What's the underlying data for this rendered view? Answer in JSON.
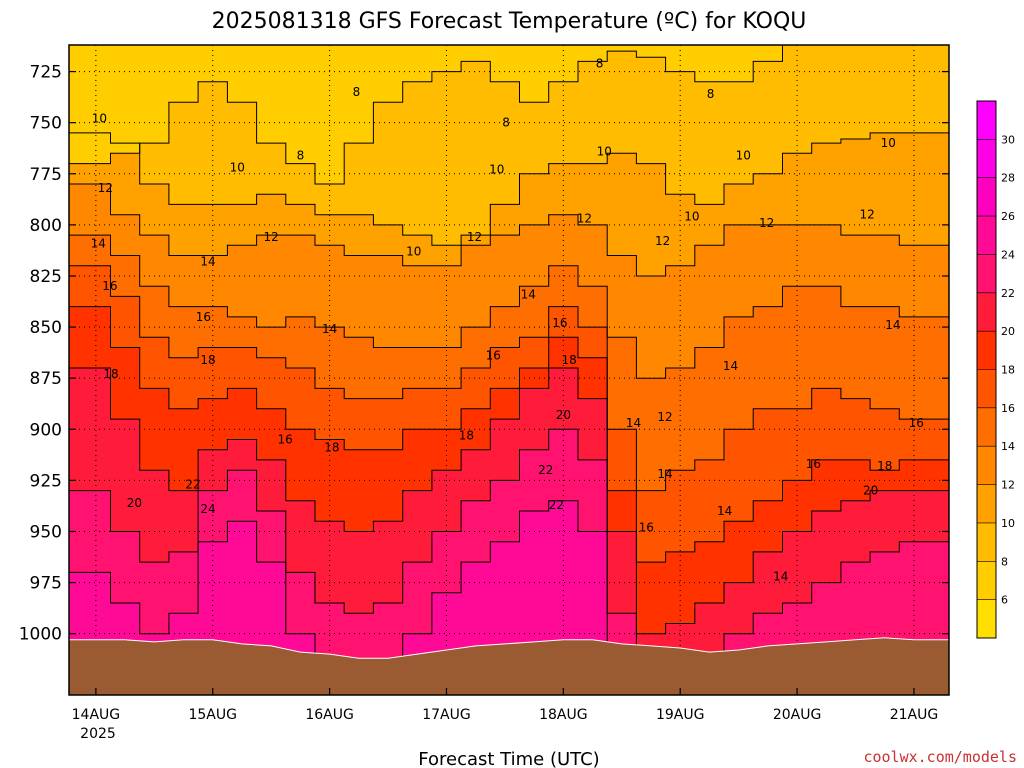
{
  "chart_data": {
    "type": "heatmap",
    "title": "2025081318 GFS Forecast Temperature (ºC) for KOQU",
    "xlabel": "Forecast Time (UTC)",
    "ylabel": "",
    "x_ticks": [
      "14AUG",
      "15AUG",
      "16AUG",
      "17AUG",
      "18AUG",
      "19AUG",
      "20AUG",
      "21AUG"
    ],
    "x_tick_year": "2025",
    "y_ticks": [
      725,
      750,
      775,
      800,
      825,
      850,
      875,
      900,
      925,
      950,
      975,
      1000
    ],
    "y_unit": "hPa",
    "y_range": [
      712,
      1030
    ],
    "y_reversed": true,
    "x_range_days": [
      -0.23,
      7.3
    ],
    "grid": true,
    "colorbar": {
      "levels": [
        4,
        6,
        8,
        10,
        12,
        14,
        16,
        18,
        20,
        22,
        24,
        26,
        28,
        30,
        32
      ],
      "labels": [
        "6",
        "8",
        "10",
        "12",
        "14",
        "16",
        "18",
        "20",
        "22",
        "24",
        "26",
        "28",
        "30"
      ],
      "colors": [
        "#ffde00",
        "#ffcd00",
        "#ffbc00",
        "#ffa200",
        "#ff8800",
        "#ff6e00",
        "#ff5400",
        "#ff3200",
        "#ff1c3a",
        "#ff1270",
        "#ff0a96",
        "#ff00be",
        "#ff00e6",
        "#ff00ff"
      ],
      "position": "right"
    },
    "times": [
      "14AUG 00Z",
      "14AUG 06Z",
      "14AUG 12Z",
      "14AUG 18Z",
      "15AUG 00Z",
      "15AUG 06Z",
      "15AUG 12Z",
      "15AUG 18Z",
      "16AUG 00Z",
      "16AUG 06Z",
      "16AUG 12Z",
      "16AUG 18Z",
      "17AUG 00Z",
      "17AUG 06Z",
      "17AUG 12Z",
      "17AUG 18Z",
      "18AUG 00Z",
      "18AUG 06Z",
      "18AUG 12Z",
      "18AUG 18Z",
      "19AUG 00Z",
      "19AUG 06Z",
      "19AUG 12Z",
      "19AUG 18Z",
      "20AUG 00Z",
      "20AUG 06Z",
      "20AUG 12Z",
      "20AUG 18Z",
      "21AUG 00Z"
    ],
    "isotherm_levels": [
      8,
      10,
      12,
      14,
      16,
      18,
      20,
      22,
      24
    ],
    "isotherm_pressure_hPa": {
      "8": [
        770,
        765,
        760,
        740,
        730,
        740,
        760,
        770,
        780,
        760,
        740,
        730,
        725,
        720,
        730,
        740,
        730,
        720,
        715,
        718,
        725,
        730,
        730,
        720,
        712,
        712,
        712,
        712,
        712
      ],
      "10": [
        755,
        760,
        780,
        790,
        790,
        790,
        785,
        790,
        795,
        795,
        800,
        805,
        810,
        805,
        790,
        775,
        770,
        770,
        765,
        770,
        785,
        790,
        780,
        775,
        765,
        760,
        758,
        755,
        755
      ],
      "12": [
        780,
        795,
        805,
        815,
        815,
        810,
        805,
        805,
        810,
        815,
        815,
        820,
        820,
        810,
        805,
        800,
        795,
        800,
        815,
        825,
        820,
        810,
        800,
        800,
        800,
        800,
        805,
        805,
        810
      ],
      "14": [
        805,
        815,
        830,
        840,
        840,
        845,
        850,
        845,
        850,
        855,
        860,
        860,
        860,
        850,
        840,
        830,
        820,
        830,
        855,
        875,
        870,
        860,
        845,
        840,
        830,
        830,
        840,
        840,
        845
      ],
      "16": [
        820,
        835,
        855,
        865,
        860,
        860,
        865,
        870,
        880,
        885,
        885,
        880,
        880,
        870,
        860,
        855,
        840,
        850,
        900,
        930,
        920,
        915,
        900,
        890,
        890,
        880,
        885,
        890,
        895
      ],
      "18": [
        840,
        860,
        880,
        890,
        885,
        880,
        890,
        900,
        905,
        910,
        910,
        900,
        900,
        890,
        880,
        870,
        855,
        865,
        930,
        965,
        960,
        955,
        945,
        935,
        925,
        915,
        915,
        920,
        915
      ],
      "20": [
        870,
        895,
        920,
        930,
        910,
        905,
        915,
        935,
        945,
        950,
        945,
        930,
        920,
        910,
        895,
        880,
        870,
        885,
        950,
        1000,
        995,
        985,
        975,
        960,
        950,
        940,
        935,
        930,
        930
      ],
      "22": [
        930,
        950,
        965,
        960,
        930,
        920,
        940,
        970,
        985,
        990,
        985,
        965,
        950,
        935,
        925,
        910,
        900,
        915,
        990,
        1030,
        1030,
        1010,
        1000,
        990,
        985,
        975,
        965,
        960,
        955
      ],
      "24": [
        970,
        985,
        1000,
        990,
        955,
        945,
        965,
        1000,
        1015,
        1020,
        1015,
        1000,
        980,
        965,
        955,
        940,
        935,
        950,
        1030,
        1030,
        1030,
        1030,
        1030,
        1030,
        1030,
        1030,
        1030,
        1030,
        1030
      ]
    },
    "contour_labels": [
      {
        "text": "8",
        "t": 2.23,
        "p": 735
      },
      {
        "text": "8",
        "t": 4.31,
        "p": 721
      },
      {
        "text": "8",
        "t": 5.26,
        "p": 736
      },
      {
        "text": "8",
        "t": 3.51,
        "p": 750
      },
      {
        "text": "8",
        "t": 1.75,
        "p": 766
      },
      {
        "text": "10",
        "t": 0.03,
        "p": 748
      },
      {
        "text": "10",
        "t": 1.21,
        "p": 772
      },
      {
        "text": "10",
        "t": 3.43,
        "p": 773
      },
      {
        "text": "10",
        "t": 4.35,
        "p": 764
      },
      {
        "text": "10",
        "t": 5.54,
        "p": 766
      },
      {
        "text": "10",
        "t": 5.1,
        "p": 796
      },
      {
        "text": "10",
        "t": 6.78,
        "p": 760
      },
      {
        "text": "10",
        "t": 2.72,
        "p": 813
      },
      {
        "text": "12",
        "t": 0.08,
        "p": 782
      },
      {
        "text": "12",
        "t": 1.5,
        "p": 806
      },
      {
        "text": "12",
        "t": 3.24,
        "p": 806
      },
      {
        "text": "12",
        "t": 4.18,
        "p": 797
      },
      {
        "text": "12",
        "t": 4.85,
        "p": 808
      },
      {
        "text": "12",
        "t": 5.74,
        "p": 799
      },
      {
        "text": "12",
        "t": 6.6,
        "p": 795
      },
      {
        "text": "12",
        "t": 4.87,
        "p": 894
      },
      {
        "text": "14",
        "t": 0.02,
        "p": 809
      },
      {
        "text": "14",
        "t": 0.96,
        "p": 818
      },
      {
        "text": "14",
        "t": 2.0,
        "p": 851
      },
      {
        "text": "14",
        "t": 3.7,
        "p": 834
      },
      {
        "text": "14",
        "t": 6.82,
        "p": 849
      },
      {
        "text": "14",
        "t": 5.43,
        "p": 869
      },
      {
        "text": "14",
        "t": 4.6,
        "p": 897
      },
      {
        "text": "14",
        "t": 4.87,
        "p": 922
      },
      {
        "text": "14",
        "t": 5.38,
        "p": 940
      },
      {
        "text": "14",
        "t": 5.86,
        "p": 972
      },
      {
        "text": "16",
        "t": 0.12,
        "p": 830
      },
      {
        "text": "16",
        "t": 0.92,
        "p": 845
      },
      {
        "text": "16",
        "t": 1.62,
        "p": 905
      },
      {
        "text": "16",
        "t": 3.4,
        "p": 864
      },
      {
        "text": "16",
        "t": 3.97,
        "p": 848
      },
      {
        "text": "16",
        "t": 7.02,
        "p": 897
      },
      {
        "text": "16",
        "t": 6.14,
        "p": 917
      },
      {
        "text": "16",
        "t": 4.71,
        "p": 948
      },
      {
        "text": "18",
        "t": 0.13,
        "p": 873
      },
      {
        "text": "18",
        "t": 0.96,
        "p": 866
      },
      {
        "text": "18",
        "t": 2.02,
        "p": 909
      },
      {
        "text": "18",
        "t": 3.17,
        "p": 903
      },
      {
        "text": "18",
        "t": 4.05,
        "p": 866
      },
      {
        "text": "18",
        "t": 6.75,
        "p": 918
      },
      {
        "text": "20",
        "t": 0.33,
        "p": 936
      },
      {
        "text": "20",
        "t": 4.0,
        "p": 893
      },
      {
        "text": "20",
        "t": 6.63,
        "p": 930
      },
      {
        "text": "22",
        "t": 0.83,
        "p": 927
      },
      {
        "text": "22",
        "t": 3.85,
        "p": 920
      },
      {
        "text": "22",
        "t": 3.94,
        "p": 937
      },
      {
        "text": "24",
        "t": 0.96,
        "p": 939
      }
    ],
    "ground_surface_hPa": [
      1003,
      1003,
      1004,
      1003,
      1003,
      1005,
      1006,
      1009,
      1010,
      1012,
      1012,
      1010,
      1008,
      1006,
      1005,
      1004,
      1003,
      1003,
      1005,
      1006,
      1007,
      1009,
      1008,
      1006,
      1005,
      1004,
      1003,
      1002,
      1003
    ]
  },
  "credit": "coolwx.com/models"
}
